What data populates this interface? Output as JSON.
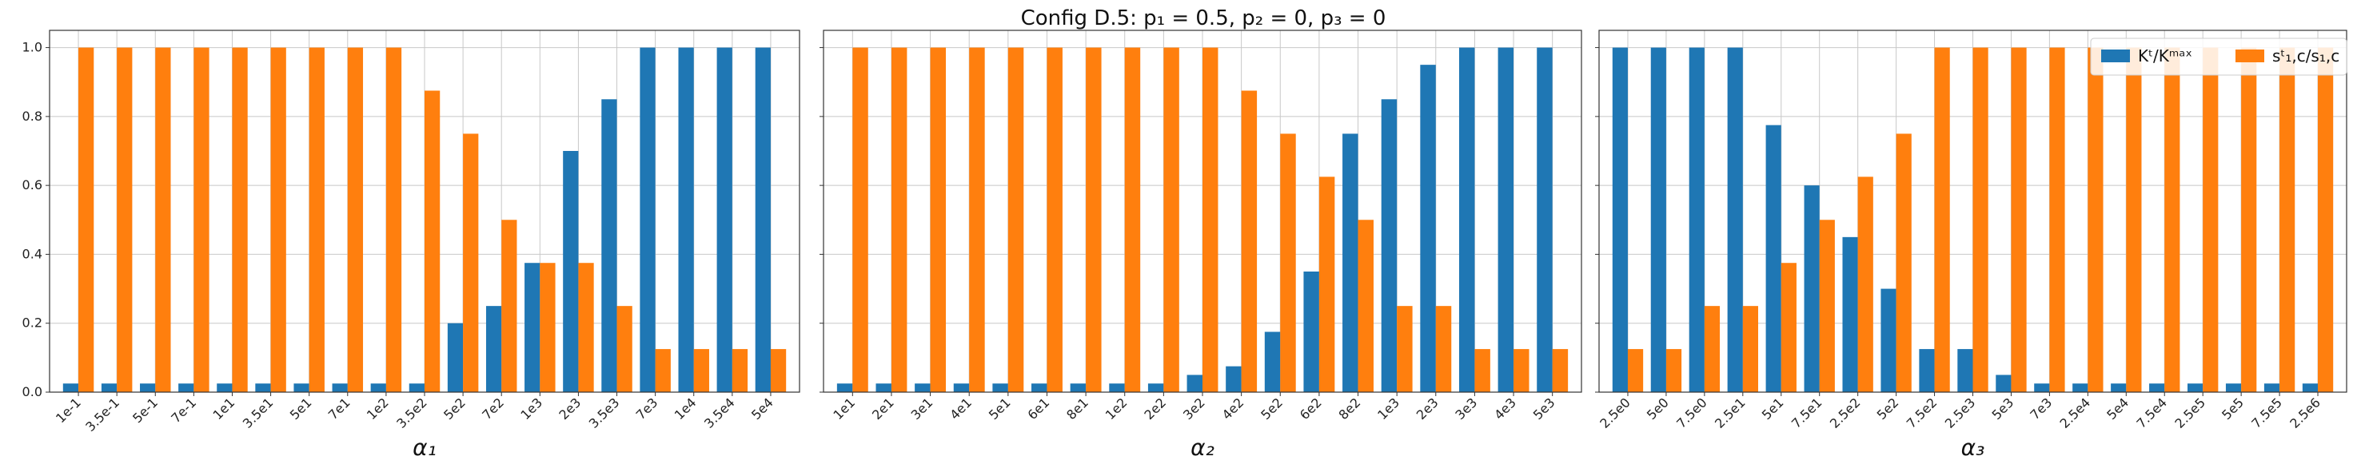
{
  "colors": {
    "blue": "#1f77b4",
    "orange": "#ff7f0e",
    "grid": "#c8c8c8",
    "axis": "#333333"
  },
  "chart_data": {
    "title": "Config D.5: p₁ = 0.5, p₂ = 0, p₃ = 0",
    "type": "bar",
    "ylim": [
      0,
      1.05
    ],
    "yticks": [
      "0.0",
      "0.2",
      "0.4",
      "0.6",
      "0.8",
      "1.0"
    ],
    "grid": true,
    "legend": {
      "placement": "top-right",
      "entries": [
        "Kᵗ/Kᵐᵃˣ",
        "sᵗ₁,c/s₁,c"
      ]
    },
    "panels": [
      {
        "xlabel": "α₁",
        "categories": [
          "1e-1",
          "3.5e-1",
          "5e-1",
          "7e-1",
          "1e1",
          "3.5e1",
          "5e1",
          "7e1",
          "1e2",
          "3.5e2",
          "5e2",
          "7e2",
          "1e3",
          "2e3",
          "3.5e3",
          "7e3",
          "1e4",
          "3.5e4",
          "5e4"
        ],
        "series": [
          {
            "name": "Kᵗ/Kᵐᵃˣ",
            "values": [
              0.025,
              0.025,
              0.025,
              0.025,
              0.025,
              0.025,
              0.025,
              0.025,
              0.025,
              0.025,
              0.2,
              0.25,
              0.375,
              0.7,
              0.85,
              1.0,
              1.0,
              1.0,
              1.0
            ]
          },
          {
            "name": "sᵗ₁,c/s₁,c",
            "values": [
              1.0,
              1.0,
              1.0,
              1.0,
              1.0,
              1.0,
              1.0,
              1.0,
              1.0,
              0.875,
              0.75,
              0.5,
              0.375,
              0.375,
              0.25,
              0.125,
              0.125,
              0.125,
              0.125
            ]
          }
        ]
      },
      {
        "xlabel": "α₂",
        "categories": [
          "1e1",
          "2e1",
          "3e1",
          "4e1",
          "5e1",
          "6e1",
          "8e1",
          "1e2",
          "2e2",
          "3e2",
          "4e2",
          "5e2",
          "6e2",
          "8e2",
          "1e3",
          "2e3",
          "3e3",
          "4e3",
          "5e3"
        ],
        "series": [
          {
            "name": "Kᵗ/Kᵐᵃˣ",
            "values": [
              0.025,
              0.025,
              0.025,
              0.025,
              0.025,
              0.025,
              0.025,
              0.025,
              0.025,
              0.05,
              0.075,
              0.175,
              0.35,
              0.75,
              0.85,
              0.95,
              1.0,
              1.0,
              1.0
            ]
          },
          {
            "name": "sᵗ₁,c/s₁,c",
            "values": [
              1.0,
              1.0,
              1.0,
              1.0,
              1.0,
              1.0,
              1.0,
              1.0,
              1.0,
              1.0,
              0.875,
              0.75,
              0.625,
              0.5,
              0.25,
              0.25,
              0.125,
              0.125,
              0.125
            ]
          }
        ]
      },
      {
        "xlabel": "α₃",
        "categories": [
          "2.5e0",
          "5e0",
          "7.5e0",
          "2.5e1",
          "5e1",
          "7.5e1",
          "2.5e2",
          "5e2",
          "7.5e2",
          "2.5e3",
          "5e3",
          "7e3",
          "2.5e4",
          "5e4",
          "7.5e4",
          "2.5e5",
          "5e5",
          "7.5e5",
          "2.5e6"
        ],
        "series": [
          {
            "name": "Kᵗ/Kᵐᵃˣ",
            "values": [
              1.0,
              1.0,
              1.0,
              1.0,
              0.775,
              0.6,
              0.45,
              0.3,
              0.125,
              0.125,
              0.05,
              0.025,
              0.025,
              0.025,
              0.025,
              0.025,
              0.025,
              0.025,
              0.025
            ]
          },
          {
            "name": "sᵗ₁,c/s₁,c",
            "values": [
              0.125,
              0.125,
              0.25,
              0.25,
              0.375,
              0.5,
              0.625,
              0.75,
              1.0,
              1.0,
              1.0,
              1.0,
              1.0,
              1.0,
              1.0,
              1.0,
              1.0,
              1.0,
              1.0
            ]
          }
        ]
      }
    ]
  }
}
